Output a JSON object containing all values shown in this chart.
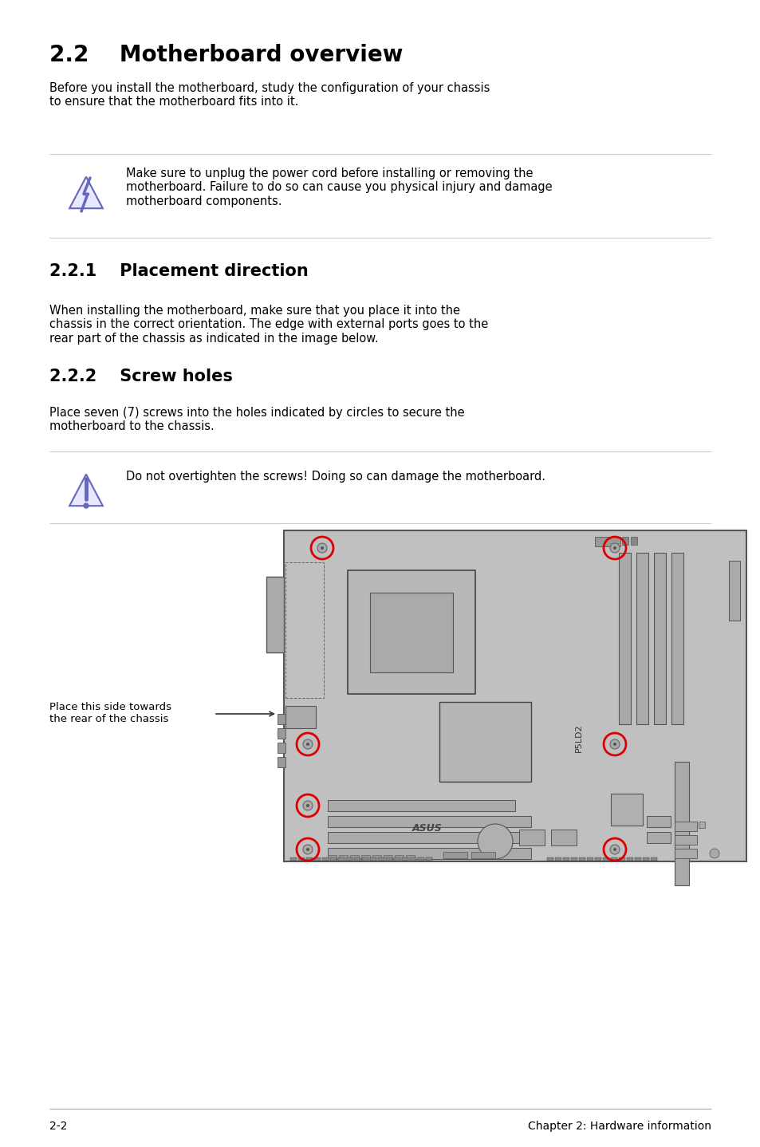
{
  "title": "2.2    Motherboard overview",
  "title_fontsize": 20,
  "body_fontsize": 11,
  "section1_title": "2.2.1    Placement direction",
  "section2_title": "2.2.2    Screw holes",
  "intro_text": "Before you install the motherboard, study the configuration of your chassis\nto ensure that the motherboard fits into it.",
  "warning1_text": "Make sure to unplug the power cord before installing or removing the\nmotherboard. Failure to do so can cause you physical injury and damage\nmotherboard components.",
  "section1_text": "When installing the motherboard, make sure that you place it into the\nchassis in the correct orientation. The edge with external ports goes to the\nrear part of the chassis as indicated in the image below.",
  "section2_text": "Place seven (7) screws into the holes indicated by circles to secure the\nmotherboard to the chassis.",
  "warning2_text": "Do not overtighten the screws! Doing so can damage the motherboard.",
  "side_label": "Place this side towards\nthe rear of the chassis",
  "page_label": "2-2",
  "chapter_label": "Chapter 2: Hardware information",
  "bg_color": "#ffffff",
  "text_color": "#000000",
  "board_color": "#c0c0c0",
  "board_edge": "#555555",
  "screw_color": "#dd0000",
  "warn_icon_color": "#6666bb",
  "warn_fill_color": "#e8e8ff",
  "line_color": "#cccccc"
}
